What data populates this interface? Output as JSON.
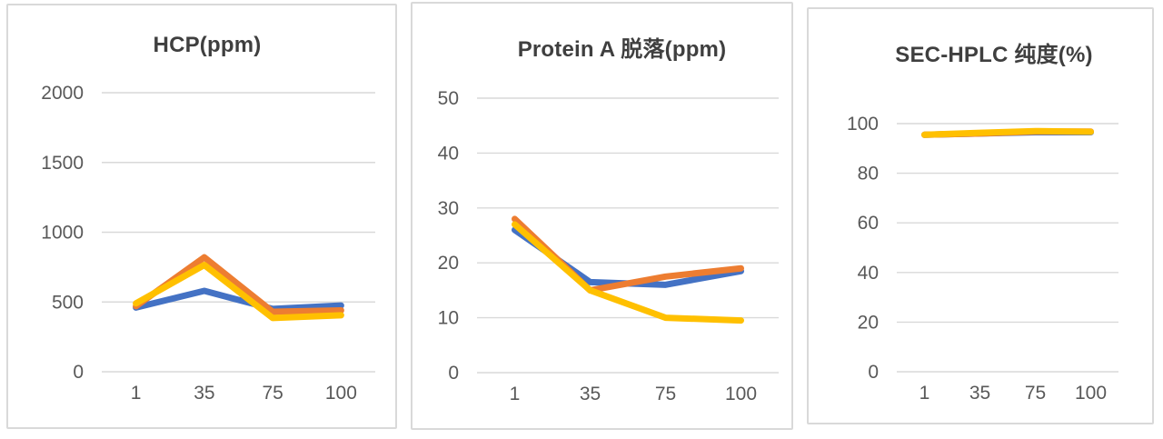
{
  "style": {
    "background_color": "#ffffff",
    "panel_border_color": "#d9d9d9",
    "grid_color": "#d9d9d9",
    "axis_text_color": "#595959",
    "title_text_color": "#3f3f3f",
    "series_blue": "#4472C4",
    "series_orange": "#ED7D31",
    "series_gold": "#FFC000"
  },
  "chart_data": [
    {
      "type": "line",
      "title": "HCP(ppm)",
      "xlabel": "",
      "ylabel": "",
      "categories": [
        "1",
        "35",
        "75",
        "100"
      ],
      "yticks": [
        0,
        500,
        1000,
        1500,
        2000
      ],
      "ylim": [
        0,
        2000
      ],
      "grid": true,
      "legend": "none",
      "series": [
        {
          "color": "#4472C4",
          "values": [
            460,
            580,
            450,
            475
          ]
        },
        {
          "color": "#ED7D31",
          "values": [
            470,
            820,
            430,
            440
          ]
        },
        {
          "color": "#FFC000",
          "values": [
            490,
            765,
            385,
            405
          ]
        }
      ]
    },
    {
      "type": "line",
      "title": "Protein A 脱落(ppm)",
      "xlabel": "",
      "ylabel": "",
      "categories": [
        "1",
        "35",
        "75",
        "100"
      ],
      "yticks": [
        0,
        10,
        20,
        30,
        40,
        50
      ],
      "ylim": [
        0,
        50
      ],
      "grid": true,
      "legend": "none",
      "series": [
        {
          "color": "#4472C4",
          "values": [
            26,
            16.5,
            16,
            18.5
          ]
        },
        {
          "color": "#ED7D31",
          "values": [
            28,
            15,
            17.5,
            19
          ]
        },
        {
          "color": "#FFC000",
          "values": [
            27,
            15,
            10,
            9.5
          ]
        }
      ]
    },
    {
      "type": "line",
      "title": "SEC-HPLC 纯度(%)",
      "xlabel": "",
      "ylabel": "",
      "categories": [
        "1",
        "35",
        "75",
        "100"
      ],
      "yticks": [
        0,
        20,
        40,
        60,
        80,
        100
      ],
      "ylim": [
        0,
        100
      ],
      "grid": true,
      "legend": "none",
      "series": [
        {
          "color": "#4472C4",
          "values": [
            95.5,
            96,
            96.5,
            96.5
          ]
        },
        {
          "color": "#ED7D31",
          "values": [
            95.5,
            96,
            96.8,
            96.8
          ]
        },
        {
          "color": "#FFC000",
          "values": [
            95.5,
            96.3,
            97,
            96.7
          ]
        }
      ]
    }
  ]
}
